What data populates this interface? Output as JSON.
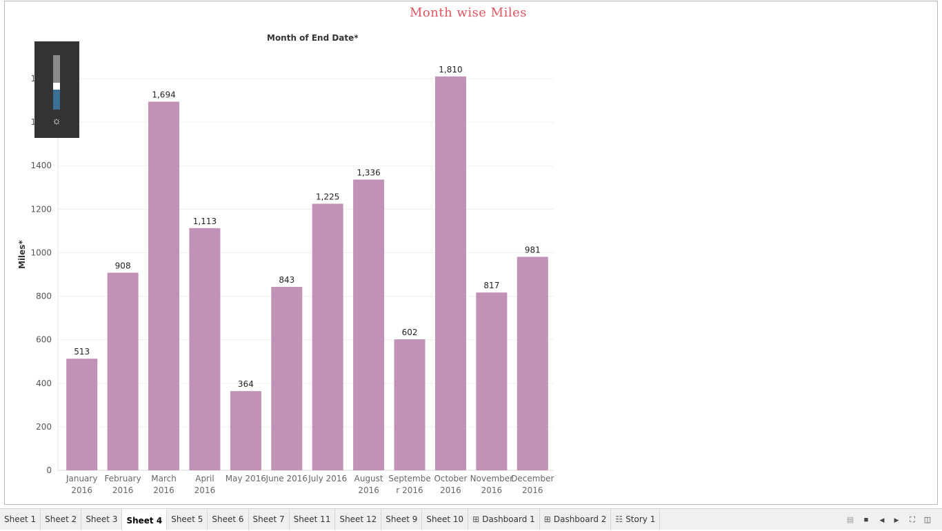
{
  "title": "Month wise Miles",
  "column_header": "Month of End Date*",
  "chart_data": {
    "type": "bar",
    "title": "Month wise Miles",
    "xlabel": "Month of End Date*",
    "ylabel": "Miles*",
    "categories": [
      [
        "January",
        "2016"
      ],
      [
        "February",
        "2016"
      ],
      [
        "March",
        "2016"
      ],
      [
        "April",
        "2016"
      ],
      [
        "May 2016"
      ],
      [
        "June 2016"
      ],
      [
        "July 2016"
      ],
      [
        "August",
        "2016"
      ],
      [
        "Septembe",
        "r 2016"
      ],
      [
        "October",
        "2016"
      ],
      [
        "November",
        "2016"
      ],
      [
        "December",
        "2016"
      ]
    ],
    "values": [
      513,
      908,
      1694,
      1113,
      364,
      843,
      1225,
      1336,
      602,
      1810,
      817,
      981
    ],
    "value_labels": [
      "513",
      "908",
      "1,694",
      "1,113",
      "364",
      "843",
      "1,225",
      "1,336",
      "602",
      "1,810",
      "817",
      "981"
    ],
    "ylim": [
      0,
      1800
    ],
    "yticks": [
      0,
      200,
      400,
      600,
      800,
      1000,
      1200,
      1400,
      1600,
      1800
    ],
    "grid": true,
    "bar_color": "#c291b6"
  },
  "zoom_control": {
    "icon": "sun-icon",
    "level": 0.37
  },
  "tabs": [
    {
      "label": "Sheet 1",
      "icon": "",
      "active": false
    },
    {
      "label": "Sheet 2",
      "icon": "",
      "active": false
    },
    {
      "label": "Sheet 3",
      "icon": "",
      "active": false
    },
    {
      "label": "Sheet 4",
      "icon": "",
      "active": true
    },
    {
      "label": "Sheet 5",
      "icon": "",
      "active": false
    },
    {
      "label": "Sheet 6",
      "icon": "",
      "active": false
    },
    {
      "label": "Sheet 7",
      "icon": "",
      "active": false
    },
    {
      "label": "Sheet 11",
      "icon": "",
      "active": false
    },
    {
      "label": "Sheet 12",
      "icon": "",
      "active": false
    },
    {
      "label": "Sheet 9",
      "icon": "",
      "active": false
    },
    {
      "label": "Sheet 10",
      "icon": "",
      "active": false
    },
    {
      "label": "Dashboard 1",
      "icon": "dashboard-icon",
      "active": false
    },
    {
      "label": "Dashboard 2",
      "icon": "dashboard-icon",
      "active": false
    },
    {
      "label": "Story 1",
      "icon": "story-icon",
      "active": false
    }
  ],
  "toolbar_icons": [
    "filmstrip-icon",
    "stop-icon",
    "prev-icon",
    "next-icon",
    "fullscreen-icon",
    "presentation-icon"
  ]
}
